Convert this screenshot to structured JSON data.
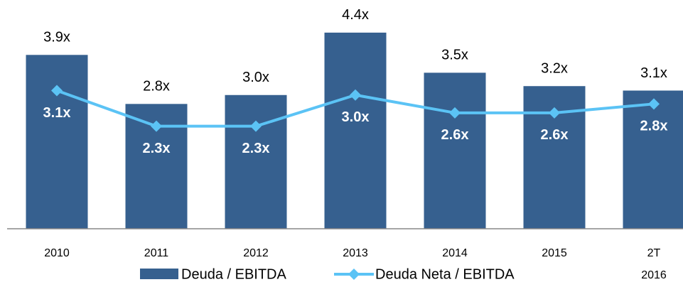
{
  "chart_data": {
    "type": "bar",
    "categories": [
      "2010",
      "2011",
      "2012",
      "2013",
      "2014",
      "2015",
      "2T 2016"
    ],
    "series": [
      {
        "name": "Deuda / EBITDA",
        "type": "bar",
        "color": "#36608f",
        "values": [
          3.9,
          2.8,
          3.0,
          4.4,
          3.5,
          3.2,
          3.1
        ],
        "value_labels": [
          "3.9x",
          "2.8x",
          "3.0x",
          "4.4x",
          "3.5x",
          "3.2x",
          "3.1x"
        ]
      },
      {
        "name": "Deuda Neta / EBITDA",
        "type": "line",
        "color": "#5bc3f5",
        "values": [
          3.1,
          2.3,
          2.3,
          3.0,
          2.6,
          2.6,
          2.8
        ],
        "value_labels": [
          "3.1x",
          "2.3x",
          "2.3x",
          "3.0x",
          "2.6x",
          "2.6x",
          "2.8x"
        ]
      }
    ],
    "ylim": [
      0,
      5.1
    ]
  }
}
